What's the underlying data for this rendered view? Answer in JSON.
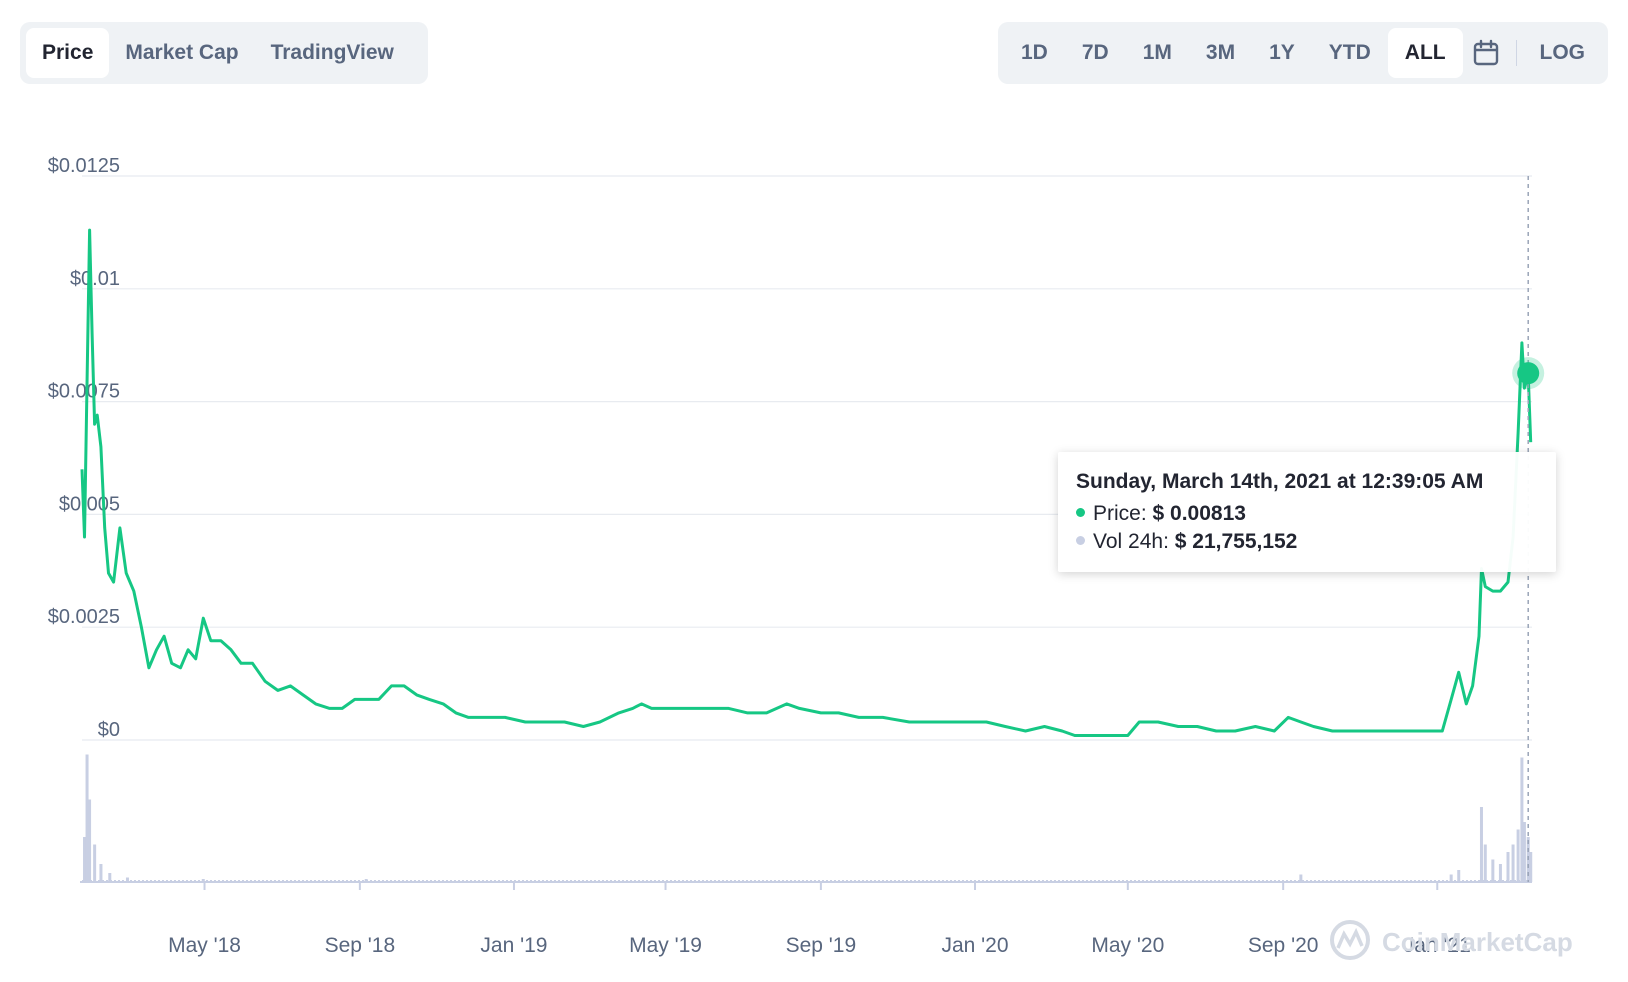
{
  "tabs_left": [
    "Price",
    "Market Cap",
    "TradingView"
  ],
  "tabs_right": [
    "1D",
    "7D",
    "1M",
    "3M",
    "1Y",
    "YTD",
    "ALL"
  ],
  "log_label": "LOG",
  "icons": {
    "calendar": "calendar-icon",
    "watermark": "coinmarketcap-logo"
  },
  "colors": {
    "line": "#16c784",
    "volume": "#c8cfe3",
    "grid": "#e8ebf0",
    "axis_text": "#58667e"
  },
  "watermark_text": "CoinMarketCap",
  "tooltip": {
    "title": "Sunday, March 14th, 2021 at 12:39:05 AM",
    "price_label": "Price:",
    "price_value": "$ 0.00813",
    "vol_label": "Vol 24h:",
    "vol_value": "$ 21,755,152"
  },
  "chart_data": {
    "type": "line",
    "yticks": [
      "$0.0125",
      "$0.01",
      "$0.0075",
      "$0.005",
      "$0.0025",
      "$0"
    ],
    "ylim": [
      0,
      0.0125
    ],
    "xticks": [
      "May '18",
      "Sep '18",
      "Jan '19",
      "May '19",
      "Sep '19",
      "Jan '20",
      "May '20",
      "Sep '20",
      "Jan '21"
    ],
    "xlim": [
      "2018-01-24",
      "2021-03-17"
    ],
    "series": [
      {
        "values": [
          [
            "2018-01-24",
            0.006
          ],
          [
            "2018-01-26",
            0.0045
          ],
          [
            "2018-01-28",
            0.008
          ],
          [
            "2018-01-30",
            0.0113
          ],
          [
            "2018-02-01",
            0.009
          ],
          [
            "2018-02-03",
            0.007
          ],
          [
            "2018-02-05",
            0.0072
          ],
          [
            "2018-02-08",
            0.0065
          ],
          [
            "2018-02-11",
            0.0047
          ],
          [
            "2018-02-14",
            0.0037
          ],
          [
            "2018-02-18",
            0.0035
          ],
          [
            "2018-02-23",
            0.0047
          ],
          [
            "2018-02-28",
            0.0037
          ],
          [
            "2018-03-06",
            0.0033
          ],
          [
            "2018-03-12",
            0.0025
          ],
          [
            "2018-03-18",
            0.0016
          ],
          [
            "2018-03-24",
            0.002
          ],
          [
            "2018-03-30",
            0.0023
          ],
          [
            "2018-04-05",
            0.0017
          ],
          [
            "2018-04-12",
            0.0016
          ],
          [
            "2018-04-18",
            0.002
          ],
          [
            "2018-04-24",
            0.0018
          ],
          [
            "2018-04-30",
            0.0027
          ],
          [
            "2018-05-06",
            0.0022
          ],
          [
            "2018-05-14",
            0.0022
          ],
          [
            "2018-05-22",
            0.002
          ],
          [
            "2018-05-30",
            0.0017
          ],
          [
            "2018-06-08",
            0.0017
          ],
          [
            "2018-06-18",
            0.0013
          ],
          [
            "2018-06-28",
            0.0011
          ],
          [
            "2018-07-08",
            0.0012
          ],
          [
            "2018-07-18",
            0.001
          ],
          [
            "2018-07-28",
            0.0008
          ],
          [
            "2018-08-08",
            0.0007
          ],
          [
            "2018-08-18",
            0.0007
          ],
          [
            "2018-08-28",
            0.0009
          ],
          [
            "2018-09-06",
            0.0009
          ],
          [
            "2018-09-16",
            0.0009
          ],
          [
            "2018-09-26",
            0.0012
          ],
          [
            "2018-10-06",
            0.0012
          ],
          [
            "2018-10-16",
            0.001
          ],
          [
            "2018-10-26",
            0.0009
          ],
          [
            "2018-11-06",
            0.0008
          ],
          [
            "2018-11-16",
            0.0006
          ],
          [
            "2018-11-26",
            0.0005
          ],
          [
            "2018-12-10",
            0.0005
          ],
          [
            "2018-12-25",
            0.0005
          ],
          [
            "2019-01-10",
            0.0004
          ],
          [
            "2019-01-25",
            0.0004
          ],
          [
            "2019-02-10",
            0.0004
          ],
          [
            "2019-02-25",
            0.0003
          ],
          [
            "2019-03-10",
            0.0004
          ],
          [
            "2019-03-25",
            0.0006
          ],
          [
            "2019-04-05",
            0.0007
          ],
          [
            "2019-04-12",
            0.0008
          ],
          [
            "2019-04-20",
            0.0007
          ],
          [
            "2019-05-05",
            0.0007
          ],
          [
            "2019-05-20",
            0.0007
          ],
          [
            "2019-06-05",
            0.0007
          ],
          [
            "2019-06-20",
            0.0007
          ],
          [
            "2019-07-05",
            0.0006
          ],
          [
            "2019-07-20",
            0.0006
          ],
          [
            "2019-08-05",
            0.0008
          ],
          [
            "2019-08-15",
            0.0007
          ],
          [
            "2019-09-01",
            0.0006
          ],
          [
            "2019-09-15",
            0.0006
          ],
          [
            "2019-10-01",
            0.0005
          ],
          [
            "2019-10-20",
            0.0005
          ],
          [
            "2019-11-10",
            0.0004
          ],
          [
            "2019-12-01",
            0.0004
          ],
          [
            "2019-12-20",
            0.0004
          ],
          [
            "2020-01-10",
            0.0004
          ],
          [
            "2020-01-25",
            0.0003
          ],
          [
            "2020-02-10",
            0.0002
          ],
          [
            "2020-02-25",
            0.0003
          ],
          [
            "2020-03-10",
            0.0002
          ],
          [
            "2020-03-20",
            0.0001
          ],
          [
            "2020-04-05",
            0.0001
          ],
          [
            "2020-04-20",
            0.0001
          ],
          [
            "2020-05-01",
            0.0001
          ],
          [
            "2020-05-10",
            0.0004
          ],
          [
            "2020-05-25",
            0.0004
          ],
          [
            "2020-06-10",
            0.0003
          ],
          [
            "2020-06-25",
            0.0003
          ],
          [
            "2020-07-10",
            0.0002
          ],
          [
            "2020-07-25",
            0.0002
          ],
          [
            "2020-08-10",
            0.0003
          ],
          [
            "2020-08-25",
            0.0002
          ],
          [
            "2020-09-05",
            0.0005
          ],
          [
            "2020-09-15",
            0.0004
          ],
          [
            "2020-09-25",
            0.0003
          ],
          [
            "2020-10-10",
            0.0002
          ],
          [
            "2020-10-25",
            0.0002
          ],
          [
            "2020-11-10",
            0.0002
          ],
          [
            "2020-11-25",
            0.0002
          ],
          [
            "2020-12-10",
            0.0002
          ],
          [
            "2020-12-25",
            0.0002
          ],
          [
            "2021-01-05",
            0.0002
          ],
          [
            "2021-01-12",
            0.0009
          ],
          [
            "2021-01-18",
            0.0015
          ],
          [
            "2021-01-24",
            0.0008
          ],
          [
            "2021-01-29",
            0.0012
          ],
          [
            "2021-02-03",
            0.0023
          ],
          [
            "2021-02-05",
            0.0038
          ],
          [
            "2021-02-08",
            0.0034
          ],
          [
            "2021-02-14",
            0.0033
          ],
          [
            "2021-02-20",
            0.0033
          ],
          [
            "2021-02-26",
            0.0035
          ],
          [
            "2021-03-02",
            0.0045
          ],
          [
            "2021-03-06",
            0.0068
          ],
          [
            "2021-03-09",
            0.0088
          ],
          [
            "2021-03-11",
            0.0078
          ],
          [
            "2021-03-14",
            0.0081
          ],
          [
            "2021-03-16",
            0.0066
          ]
        ]
      }
    ],
    "volume": [
      [
        "2018-01-26",
        0.3
      ],
      [
        "2018-01-28",
        0.85
      ],
      [
        "2018-01-30",
        0.55
      ],
      [
        "2018-02-03",
        0.25
      ],
      [
        "2018-02-08",
        0.12
      ],
      [
        "2018-02-15",
        0.06
      ],
      [
        "2018-03-01",
        0.03
      ],
      [
        "2018-04-30",
        0.02
      ],
      [
        "2018-09-06",
        0.02
      ],
      [
        "2020-09-15",
        0.05
      ],
      [
        "2021-01-12",
        0.05
      ],
      [
        "2021-01-18",
        0.08
      ],
      [
        "2021-02-05",
        0.5
      ],
      [
        "2021-02-08",
        0.25
      ],
      [
        "2021-02-14",
        0.15
      ],
      [
        "2021-02-20",
        0.12
      ],
      [
        "2021-02-26",
        0.2
      ],
      [
        "2021-03-02",
        0.25
      ],
      [
        "2021-03-06",
        0.35
      ],
      [
        "2021-03-09",
        0.83
      ],
      [
        "2021-03-11",
        0.4
      ],
      [
        "2021-03-14",
        0.3
      ],
      [
        "2021-03-16",
        0.2
      ]
    ],
    "highlight": {
      "x": "2021-03-14",
      "y": 0.00813
    }
  }
}
